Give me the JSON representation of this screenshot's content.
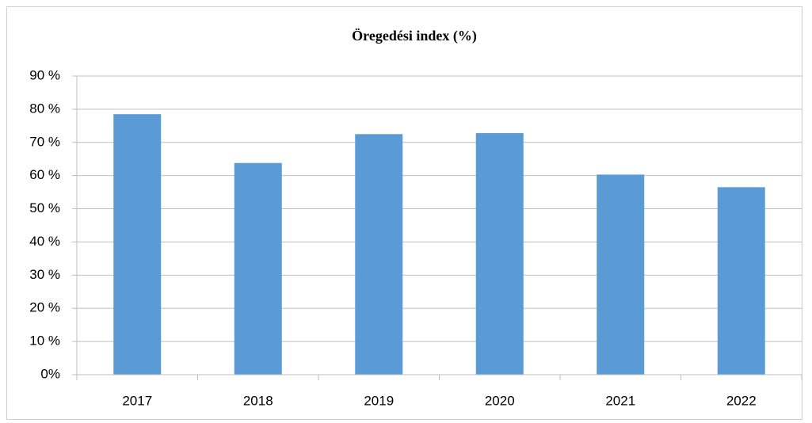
{
  "chart_data": {
    "type": "bar",
    "title": "Öregedési index (%)",
    "categories": [
      "2017",
      "2018",
      "2019",
      "2020",
      "2021",
      "2022"
    ],
    "values": [
      78.5,
      63.8,
      72.5,
      72.8,
      60.3,
      56.5
    ],
    "color": "#5b9bd5",
    "ylim": [
      0,
      90
    ],
    "yticks": [
      {
        "value": 0,
        "label": "0%"
      },
      {
        "value": 10,
        "label": "10 %"
      },
      {
        "value": 20,
        "label": "20 %"
      },
      {
        "value": 30,
        "label": "30 %"
      },
      {
        "value": 40,
        "label": "40 %"
      },
      {
        "value": 50,
        "label": "50 %"
      },
      {
        "value": 60,
        "label": "60 %"
      },
      {
        "value": 70,
        "label": "70 %"
      },
      {
        "value": 80,
        "label": "80 %"
      },
      {
        "value": 90,
        "label": "90 %"
      }
    ],
    "grid": true
  }
}
